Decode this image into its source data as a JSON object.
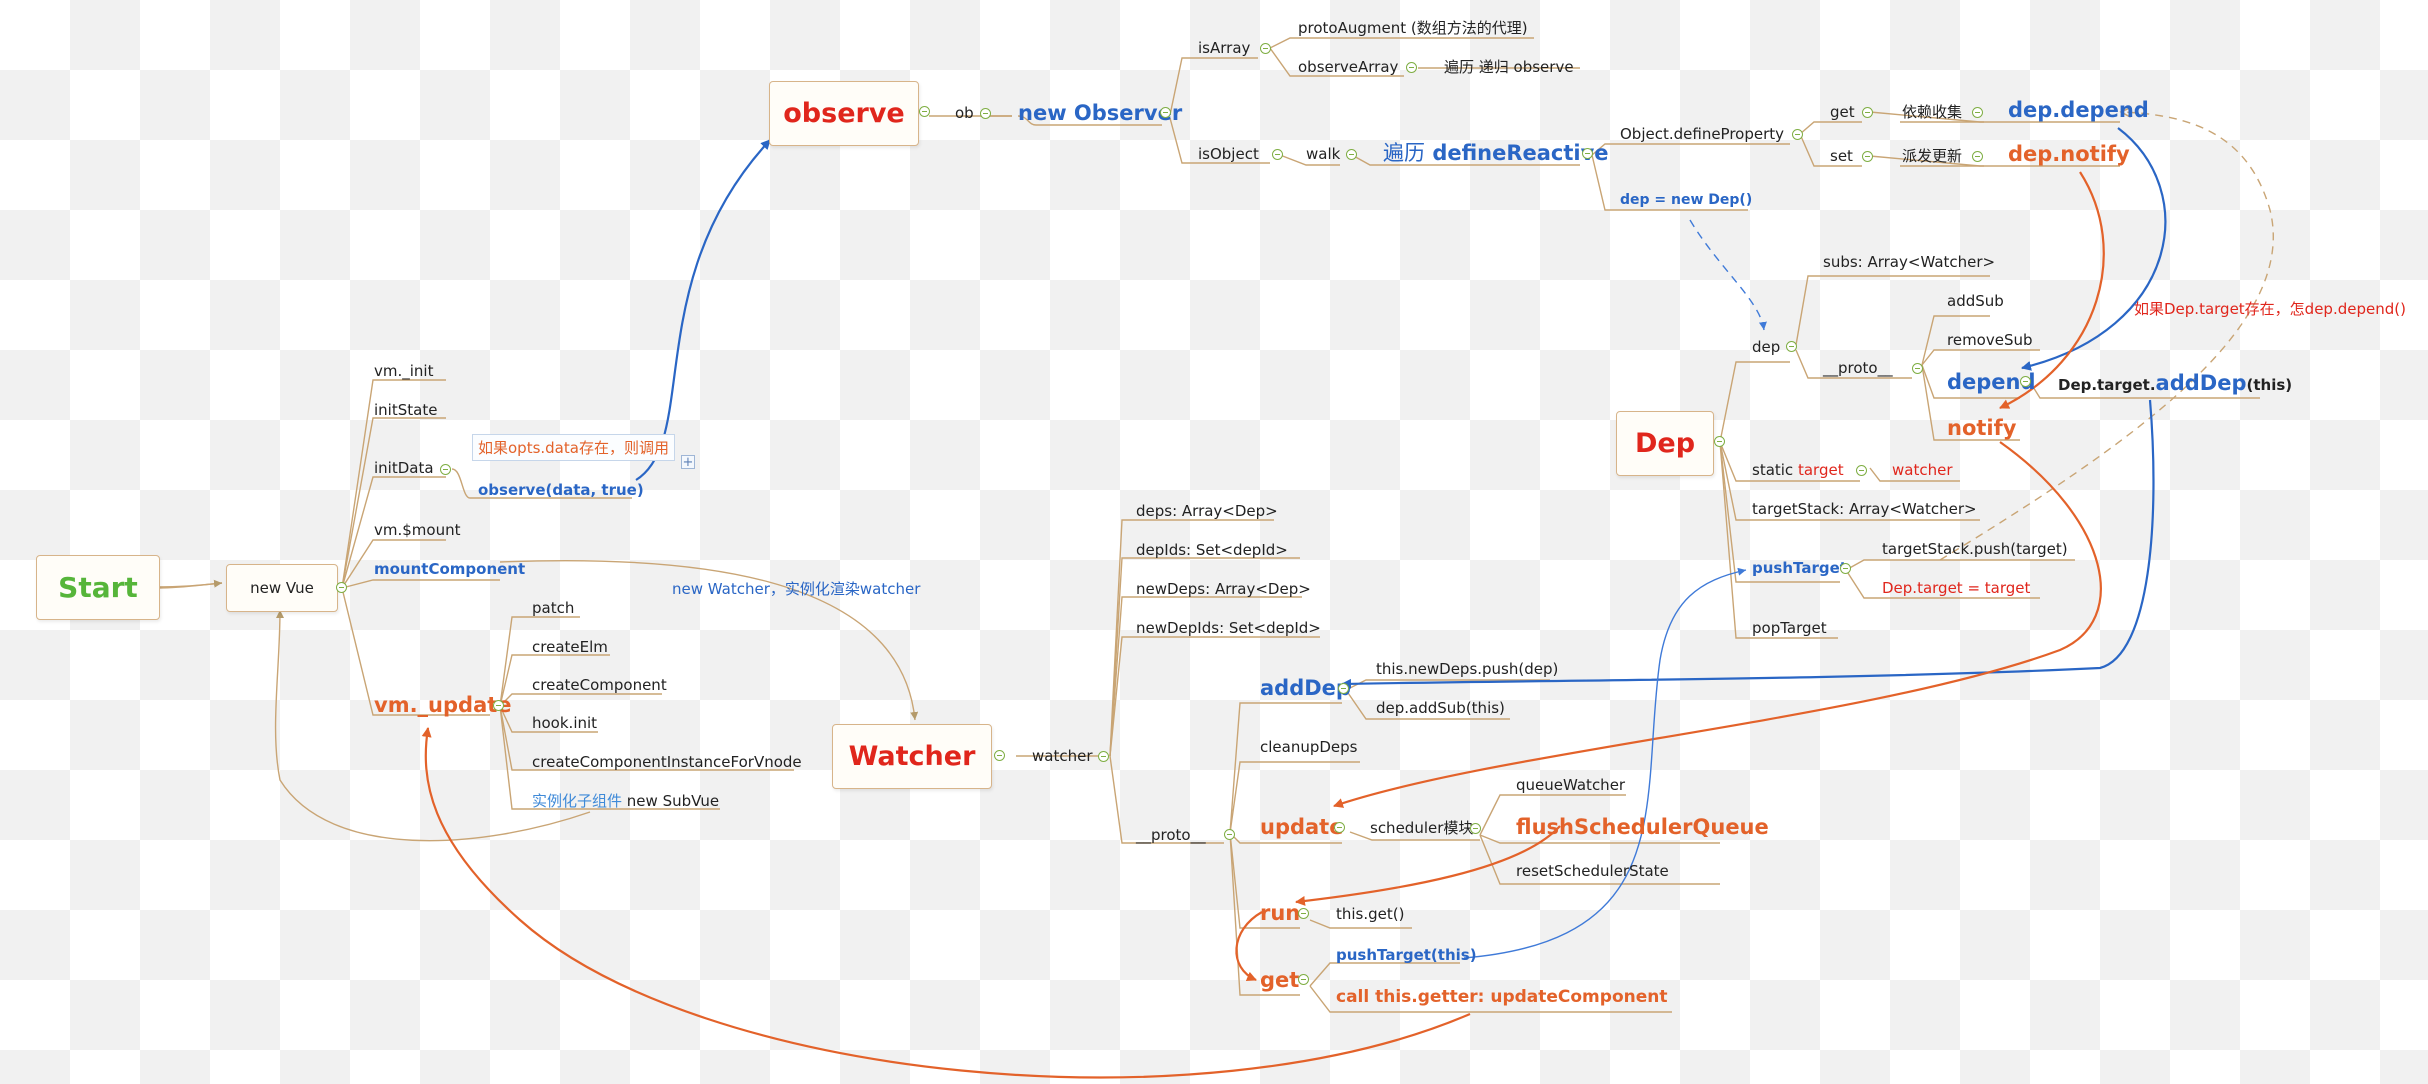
{
  "colors": {
    "link": "#c9a575",
    "blue": "#2a66c5",
    "orange": "#e3622a",
    "red": "#e0261c",
    "green": "#56b53a",
    "knob": "#7fae44"
  },
  "mindmap": {
    "start": "Start",
    "new_vue": "new Vue",
    "vue_children": [
      "vm._init",
      "initState",
      "initData",
      "observe(data, true)",
      "vm.$mount",
      "mountComponent",
      "vm._update"
    ],
    "initdata_note": "如果opts.data存在，则调用",
    "plus": "+",
    "update_children": [
      "patch",
      "createElm",
      "createComponent",
      "hook.init",
      "createComponentInstanceForVnode"
    ],
    "subvue_prefix": "实例化子组件",
    "subvue": "new SubVue",
    "observe": "observe",
    "ob": "ob",
    "new_observer": "new Observer",
    "is_array": "isArray",
    "proto_augment": "protoAugment (数组方法的代理)",
    "observe_array": "observeArray",
    "observe_array_desc": "遍历 递归 observe",
    "is_object": "isObject",
    "walk": "walk",
    "define_reactive_prefix": "遍历",
    "define_reactive": "defineReactive",
    "object_define_property": "Object.defineProperty",
    "get": "get",
    "get_desc": "依赖收集",
    "dep_depend": "dep.depend",
    "set": "set",
    "set_desc": "派发更新",
    "dep_notify": "dep.notify",
    "dep_new": "dep = new Dep()",
    "dep_box": "Dep",
    "dep": "dep",
    "subs": "subs: Array<Watcher>",
    "dep_proto": "__proto__",
    "add_sub": "addSub",
    "remove_sub": "removeSub",
    "depend": "depend",
    "dep_target_adddep_prefix": "Dep.target.",
    "dep_target_adddep": "addDep",
    "dep_target_adddep_suffix": "(this)",
    "notify": "notify",
    "static_target_prefix": "static",
    "static_target": "target",
    "static_target_value": "watcher",
    "target_stack": "targetStack: Array<Watcher>",
    "push_target": "pushTarget",
    "target_stack_push": "targetStack.push(target)",
    "dep_target_assign": "Dep.target = target",
    "pop_target": "popTarget",
    "depend_note": "如果Dep.target存在，怎dep.depend()",
    "watcher_label": "new Watcher，实例化渲染watcher",
    "watcher_box": "Watcher",
    "watcher": "watcher",
    "watcher_fields": [
      "deps: Array<Dep>",
      "depIds: Set<depId>",
      "newDeps: Array<Dep>",
      "newDepIds: Set<depId>"
    ],
    "watcher_proto": "__proto__",
    "add_dep": "addDep",
    "new_deps_push": "this.newDeps.push(dep)",
    "dep_add_sub": "dep.addSub(this)",
    "cleanup_deps": "cleanupDeps",
    "update": "update",
    "scheduler": "scheduler模块",
    "queue_watcher": "queueWatcher",
    "flush_scheduler_queue": "flushSchedulerQueue",
    "reset_scheduler_state": "resetSchedulerState",
    "run": "run",
    "this_get": "this.get()",
    "get_method": "get",
    "push_target_this": "pushTarget(this)",
    "call_getter": "call this.getter: updateComponent"
  }
}
